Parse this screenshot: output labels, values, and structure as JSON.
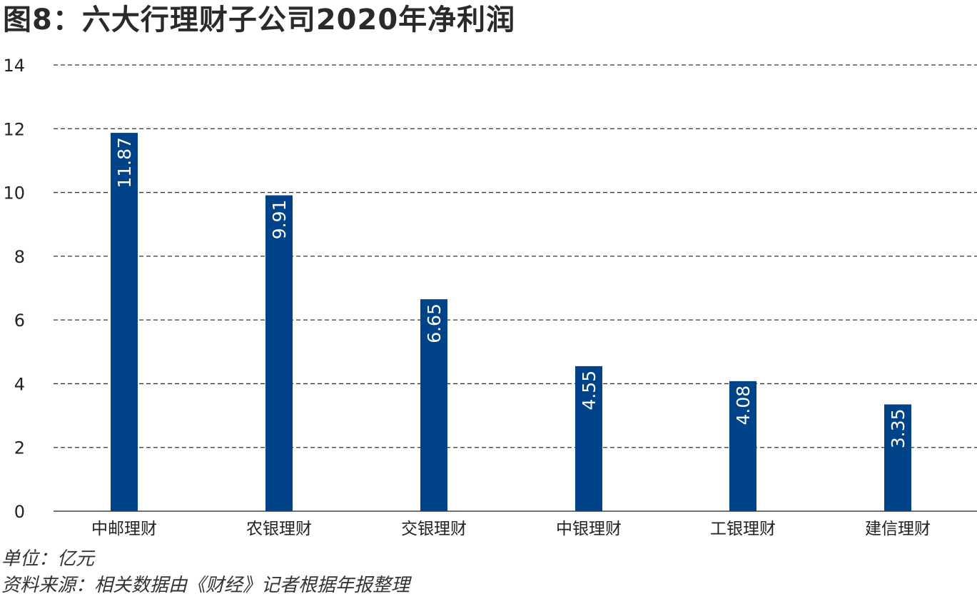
{
  "title": "图8：六大行理财子公司2020年净利润",
  "unit_note": "单位：亿元",
  "source_note": "资料来源：相关数据由《财经》记者根据年报整理",
  "colors": {
    "bar": "#004388",
    "bar_label": "#ffffff",
    "grid": "#333333",
    "axis": "#444444",
    "text": "#222222"
  },
  "chart_data": {
    "type": "bar",
    "categories": [
      "中邮理财",
      "农银理财",
      "交银理财",
      "中银理财",
      "工银理财",
      "建信理财"
    ],
    "values": [
      11.87,
      9.91,
      6.65,
      4.55,
      4.08,
      3.35
    ],
    "data_labels": [
      "11.87",
      "9.91",
      "6.65",
      "4.55",
      "4.08",
      "3.35"
    ],
    "ylim": [
      0,
      14
    ],
    "yticks": [
      0,
      2,
      4,
      6,
      8,
      10,
      12,
      14
    ],
    "grid": "dashed horizontal",
    "legend": "none",
    "data_label_orientation": "vertical, inside bar top"
  }
}
